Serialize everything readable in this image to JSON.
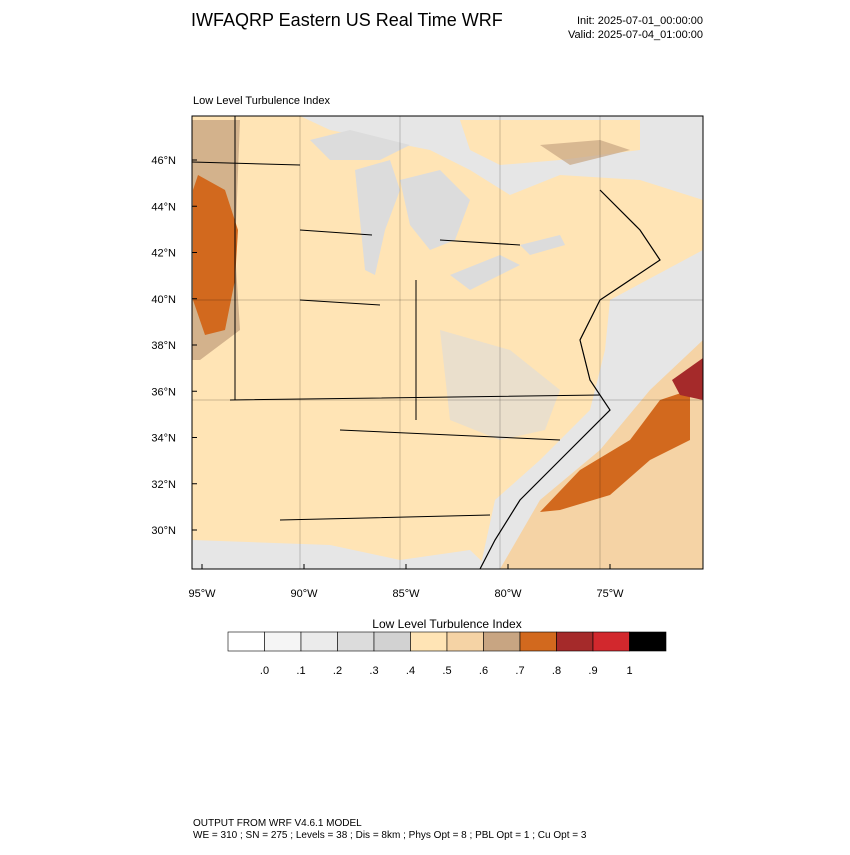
{
  "header": {
    "title": "IWFAQRP Eastern US Real Time WRF",
    "init": "Init: 2025-07-01_00:00:00",
    "valid": "Valid: 2025-07-04_01:00:00"
  },
  "map": {
    "subtitle": "Low Level Turbulence Index",
    "lat_labels": [
      "46°N",
      "44°N",
      "42°N",
      "40°N",
      "38°N",
      "36°N",
      "34°N",
      "32°N",
      "30°N"
    ],
    "lon_labels": [
      "95°W",
      "90°W",
      "85°W",
      "80°W",
      "75°W"
    ]
  },
  "colorbar": {
    "title": "Low Level Turbulence Index",
    "colors": [
      "#ffffff",
      "#f5f5f5",
      "#ebebeb",
      "#dcdcdc",
      "#d2d2d2",
      "#ffe4b5",
      "#f5d3a5",
      "#c8a582",
      "#d2691e",
      "#a52a2a",
      "#d2282d",
      "#000000"
    ],
    "labels": [
      ".0",
      ".1",
      ".2",
      ".3",
      ".4",
      ".5",
      ".6",
      ".7",
      ".8",
      ".9",
      "1"
    ]
  },
  "footer": {
    "line1": "OUTPUT FROM WRF V4.6.1 MODEL",
    "line2": "WE = 310 ; SN = 275 ; Levels = 38 ; Dis = 8km ; Phys Opt = 8 ; PBL Opt = 1 ; Cu Opt = 3"
  }
}
